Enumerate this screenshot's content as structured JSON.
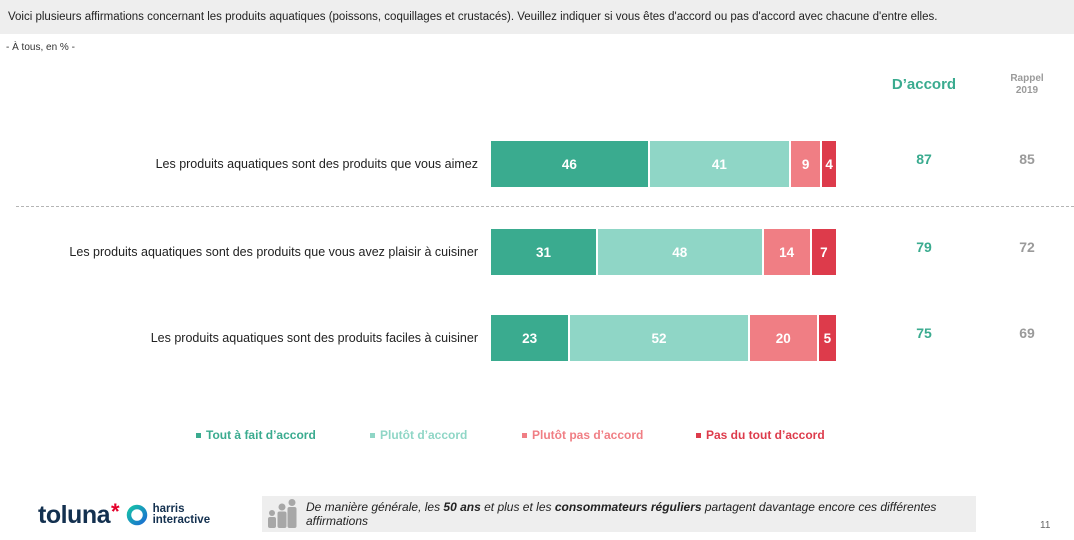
{
  "question": "Voici plusieurs affirmations concernant les produits aquatiques (poissons, coquillages et crustacés). Veuillez indiquer si vous êtes d'accord ou pas d'accord avec chacune d'entre elles.",
  "base": "- À tous, en % -",
  "columns": {
    "agree": "D’accord",
    "rappel_line1": "Rappel",
    "rappel_line2": "2019"
  },
  "colors": {
    "tout_a_fait": "#3aab8f",
    "plutot": "#8fd6c6",
    "plutot_pas": "#f07e84",
    "pas_du_tout": "#dd3b4b",
    "agree_text": "#3aab8f",
    "rappel_text": "#9a9a9a"
  },
  "chart_data": {
    "type": "bar",
    "orientation": "horizontal",
    "stacked": true,
    "categories": [
      "Les produits aquatiques sont des produits que vous aimez",
      "Les produits aquatiques sont des produits que vous avez plaisir à cuisiner",
      "Les produits aquatiques sont des produits faciles à cuisiner"
    ],
    "series": [
      {
        "name": "Tout à fait d’accord",
        "values": [
          46,
          31,
          23
        ]
      },
      {
        "name": "Plutôt d’accord",
        "values": [
          41,
          48,
          52
        ]
      },
      {
        "name": "Plutôt pas d’accord",
        "values": [
          9,
          14,
          20
        ]
      },
      {
        "name": "Pas du tout d’accord",
        "values": [
          4,
          7,
          5
        ]
      }
    ],
    "agree_totals": [
      87,
      79,
      75
    ],
    "rappel_2019": [
      85,
      72,
      69
    ],
    "xlim": [
      0,
      100
    ],
    "legend_position": "bottom"
  },
  "footer": {
    "logo_toluna": "toluna",
    "logo_harris_line1": "harris",
    "logo_harris_line2": "interactive",
    "callout_parts": [
      {
        "text": "De manière générale, les ",
        "bold": false
      },
      {
        "text": "50 ans",
        "bold": true
      },
      {
        "text": " et plus et les ",
        "bold": false
      },
      {
        "text": "consommateurs réguliers",
        "bold": true
      },
      {
        "text": " partagent davantage encore ces différentes affirmations",
        "bold": false
      }
    ],
    "page_number": "11"
  }
}
